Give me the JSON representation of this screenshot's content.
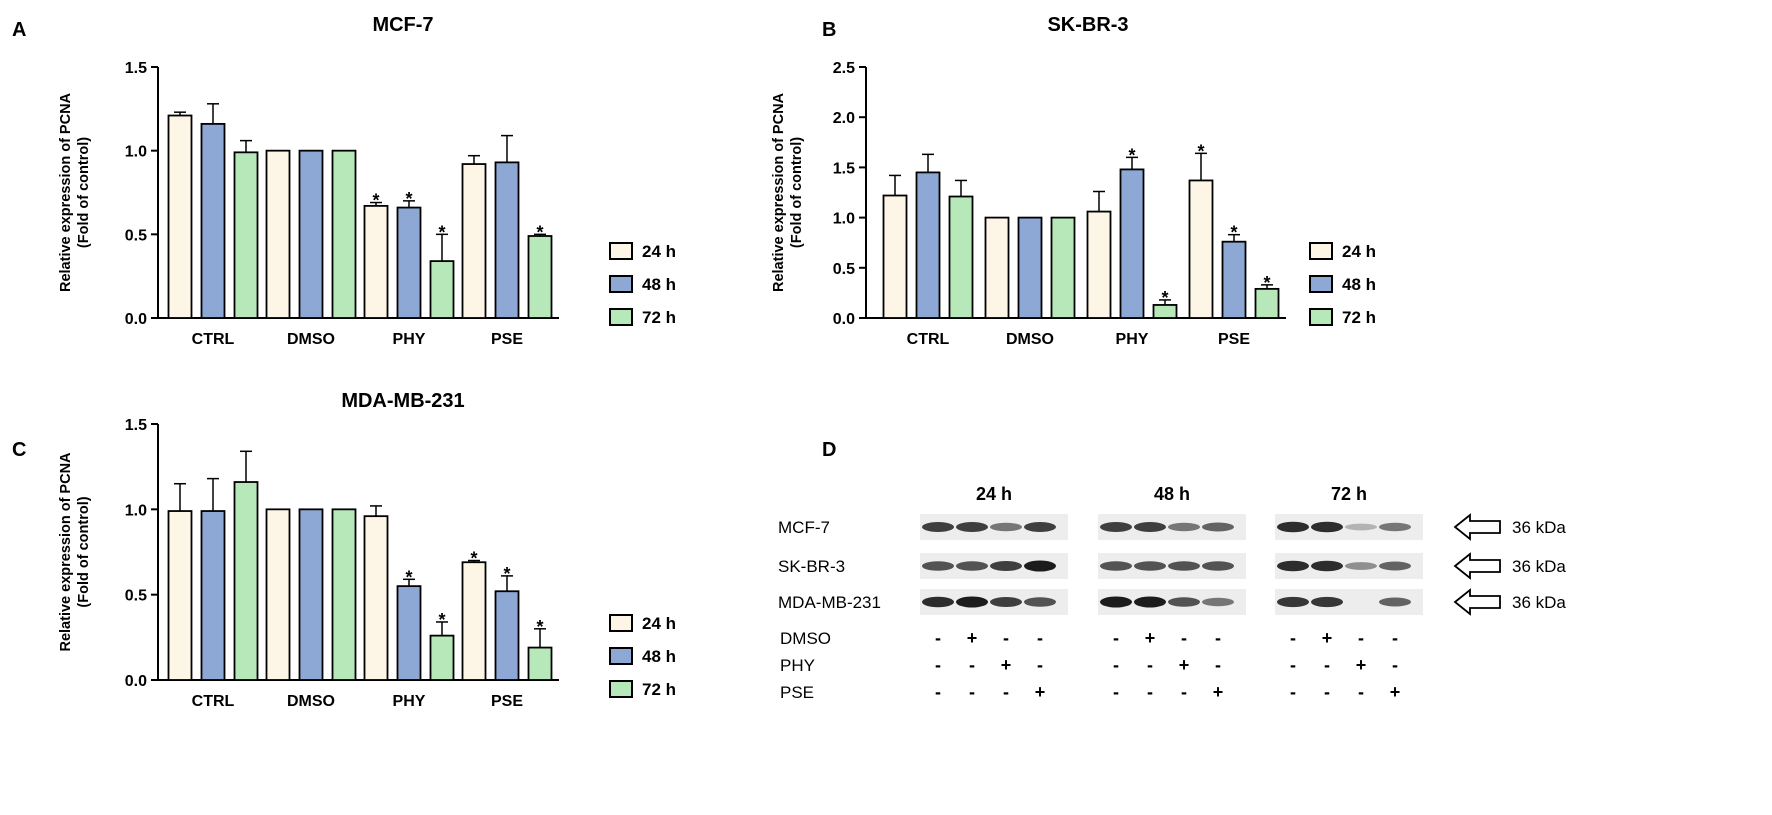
{
  "colors": {
    "h24": "#fdf6e6",
    "h48": "#8ea8d6",
    "h72": "#b6e8b9",
    "axis": "#000000",
    "band": "#1c1c1c"
  },
  "chart_data": [
    {
      "panel": "A",
      "type": "bar",
      "title": "MCF-7",
      "ylabel": "Relative expression of PCNA",
      "ylabel2": "(Fold of control)",
      "ylim": [
        0,
        1.5
      ],
      "yticks": [
        "0.0",
        "0.5",
        "1.0",
        "1.5"
      ],
      "ytick_values": [
        0,
        0.5,
        1.0,
        1.5
      ],
      "categories": [
        "CTRL",
        "DMSO",
        "PHY",
        "PSE"
      ],
      "series": [
        {
          "name": "24 h",
          "values": [
            1.21,
            1.0,
            0.67,
            0.92
          ],
          "errors": [
            0.02,
            0.0,
            0.02,
            0.05
          ],
          "sig": [
            "",
            "",
            "*",
            ""
          ]
        },
        {
          "name": "48 h",
          "values": [
            1.16,
            1.0,
            0.66,
            0.93
          ],
          "errors": [
            0.12,
            0.0,
            0.04,
            0.16
          ],
          "sig": [
            "",
            "",
            "*",
            ""
          ]
        },
        {
          "name": "72 h",
          "values": [
            0.99,
            1.0,
            0.34,
            0.49
          ],
          "errors": [
            0.07,
            0.0,
            0.16,
            0.01
          ],
          "sig": [
            "",
            "",
            "*",
            "*"
          ]
        }
      ]
    },
    {
      "panel": "B",
      "type": "bar",
      "title": "SK-BR-3",
      "ylabel": "Relative expression of PCNA",
      "ylabel2": "(Fold of control)",
      "ylim": [
        0,
        2.5
      ],
      "yticks": [
        "0.0",
        "0.5",
        "1.0",
        "1.5",
        "2.0",
        "2.5"
      ],
      "ytick_values": [
        0,
        0.5,
        1.0,
        1.5,
        2.0,
        2.5
      ],
      "categories": [
        "CTRL",
        "DMSO",
        "PHY",
        "PSE"
      ],
      "series": [
        {
          "name": "24 h",
          "values": [
            1.22,
            1.0,
            1.06,
            1.37
          ],
          "errors": [
            0.2,
            0.0,
            0.2,
            0.27
          ],
          "sig": [
            "",
            "",
            "",
            "*"
          ]
        },
        {
          "name": "48 h",
          "values": [
            1.45,
            1.0,
            1.48,
            0.76
          ],
          "errors": [
            0.18,
            0.0,
            0.12,
            0.07
          ],
          "sig": [
            "",
            "",
            "*",
            "*"
          ]
        },
        {
          "name": "72 h",
          "values": [
            1.21,
            1.0,
            0.13,
            0.29
          ],
          "errors": [
            0.16,
            0.0,
            0.05,
            0.04
          ],
          "sig": [
            "",
            "",
            "*",
            "*"
          ]
        }
      ]
    },
    {
      "panel": "C",
      "type": "bar",
      "title": "MDA-MB-231",
      "ylabel": "Relative expression of PCNA",
      "ylabel2": "(Fold of control)",
      "ylim": [
        0,
        1.5
      ],
      "yticks": [
        "0.0",
        "0.5",
        "1.0",
        "1.5"
      ],
      "ytick_values": [
        0,
        0.5,
        1.0,
        1.5
      ],
      "categories": [
        "CTRL",
        "DMSO",
        "PHY",
        "PSE"
      ],
      "series": [
        {
          "name": "24 h",
          "values": [
            0.99,
            1.0,
            0.96,
            0.69
          ],
          "errors": [
            0.16,
            0.0,
            0.06,
            0.01
          ],
          "sig": [
            "",
            "",
            "",
            "*"
          ]
        },
        {
          "name": "48 h",
          "values": [
            0.99,
            1.0,
            0.55,
            0.52
          ],
          "errors": [
            0.19,
            0.0,
            0.04,
            0.09
          ],
          "sig": [
            "",
            "",
            "*",
            "*"
          ]
        },
        {
          "name": "72 h",
          "values": [
            1.16,
            1.0,
            0.26,
            0.19
          ],
          "errors": [
            0.18,
            0.0,
            0.08,
            0.11
          ],
          "sig": [
            "",
            "",
            "*",
            "*"
          ]
        }
      ]
    }
  ],
  "blot": {
    "panel": "D",
    "time_labels": [
      "24 h",
      "48 h",
      "72 h"
    ],
    "rows": [
      {
        "label": "MCF-7",
        "kda": "36 kDa",
        "bands": [
          [
            0.8,
            0.8,
            0.5,
            0.8
          ],
          [
            0.8,
            0.8,
            0.5,
            0.6
          ],
          [
            0.9,
            0.9,
            0.15,
            0.5
          ]
        ]
      },
      {
        "label": "SK-BR-3",
        "kda": "36 kDa",
        "bands": [
          [
            0.7,
            0.7,
            0.8,
            1.0
          ],
          [
            0.7,
            0.7,
            0.7,
            0.7
          ],
          [
            0.9,
            0.9,
            0.35,
            0.6
          ]
        ]
      },
      {
        "label": "MDA-MB-231",
        "kda": "36 kDa",
        "bands": [
          [
            0.9,
            1.0,
            0.8,
            0.7
          ],
          [
            1.0,
            1.0,
            0.7,
            0.5
          ],
          [
            0.85,
            0.85,
            0.0,
            0.6
          ]
        ]
      }
    ],
    "treatments": [
      {
        "label": "DMSO",
        "marks": [
          "-",
          "+",
          "-",
          "-"
        ]
      },
      {
        "label": "PHY",
        "marks": [
          "-",
          "-",
          "+",
          "-"
        ]
      },
      {
        "label": "PSE",
        "marks": [
          "-",
          "-",
          "-",
          "+"
        ]
      }
    ]
  }
}
